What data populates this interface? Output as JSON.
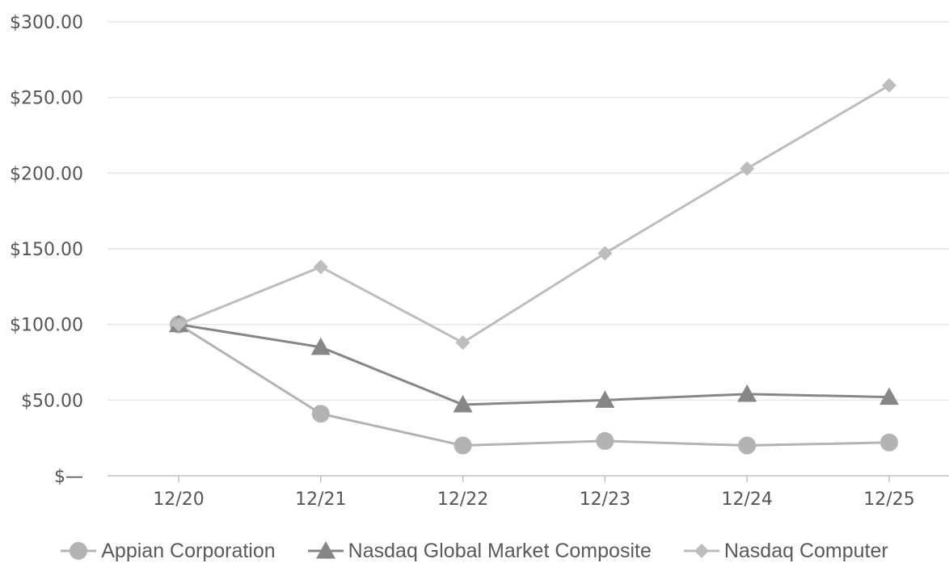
{
  "chart_data": {
    "type": "line",
    "categories": [
      "12/20",
      "12/21",
      "12/22",
      "12/23",
      "12/24",
      "12/25"
    ],
    "y_ticks": [
      "$—",
      "$50.00",
      "$100.00",
      "$150.00",
      "$200.00",
      "$250.00",
      "$300.00"
    ],
    "ylim": [
      0,
      300
    ],
    "grid": true,
    "legend_position": "bottom",
    "series": [
      {
        "name": "Appian Corporation",
        "marker": "circle",
        "color": "#b3b3b3",
        "values": [
          100,
          41,
          20,
          23,
          20,
          22
        ]
      },
      {
        "name": "Nasdaq Global Market Composite",
        "marker": "triangle",
        "color": "#868686",
        "values": [
          100,
          85,
          47,
          50,
          54,
          52
        ]
      },
      {
        "name": "Nasdaq Computer",
        "marker": "diamond",
        "color": "#bdbdbd",
        "values": [
          100,
          138,
          88,
          147,
          203,
          258
        ]
      }
    ]
  }
}
